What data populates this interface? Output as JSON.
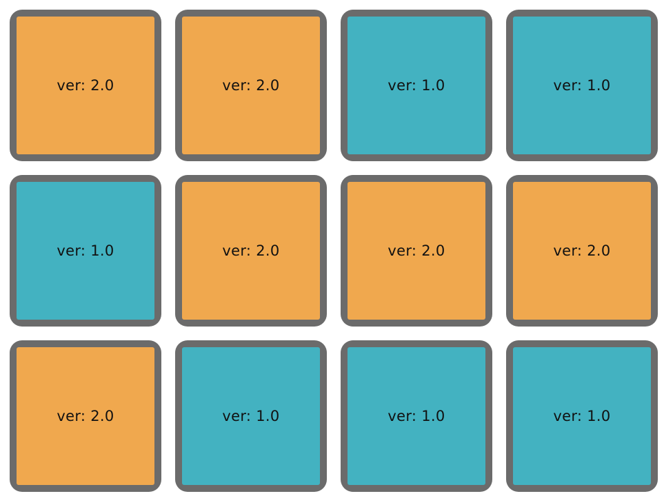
{
  "colors": {
    "tile_border": "#6b6b6b",
    "version_2": "#f0a84e",
    "version_1": "#43b2c1"
  },
  "tiles": [
    {
      "label": "ver: 2.0",
      "variant": "v2"
    },
    {
      "label": "ver: 2.0",
      "variant": "v2"
    },
    {
      "label": "ver: 1.0",
      "variant": "v1"
    },
    {
      "label": "ver: 1.0",
      "variant": "v1"
    },
    {
      "label": "ver: 1.0",
      "variant": "v1"
    },
    {
      "label": "ver: 2.0",
      "variant": "v2"
    },
    {
      "label": "ver: 2.0",
      "variant": "v2"
    },
    {
      "label": "ver: 2.0",
      "variant": "v2"
    },
    {
      "label": "ver: 2.0",
      "variant": "v2"
    },
    {
      "label": "ver: 1.0",
      "variant": "v1"
    },
    {
      "label": "ver: 1.0",
      "variant": "v1"
    },
    {
      "label": "ver: 1.0",
      "variant": "v1"
    }
  ]
}
